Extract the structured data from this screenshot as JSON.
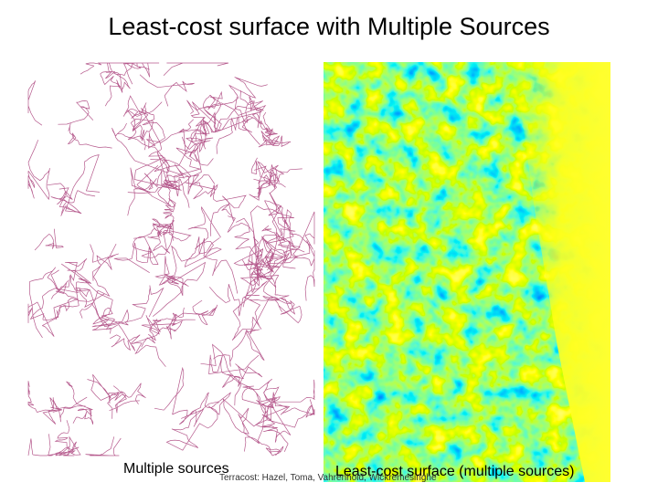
{
  "slide": {
    "title": "Least-cost surface with Multiple Sources",
    "left_caption": "Multiple sources",
    "right_caption": "Least-cost surface (multiple sources)",
    "credit": "Terracost: Hazel, Toma, Vahrenhold, Wickremesinghe"
  }
}
